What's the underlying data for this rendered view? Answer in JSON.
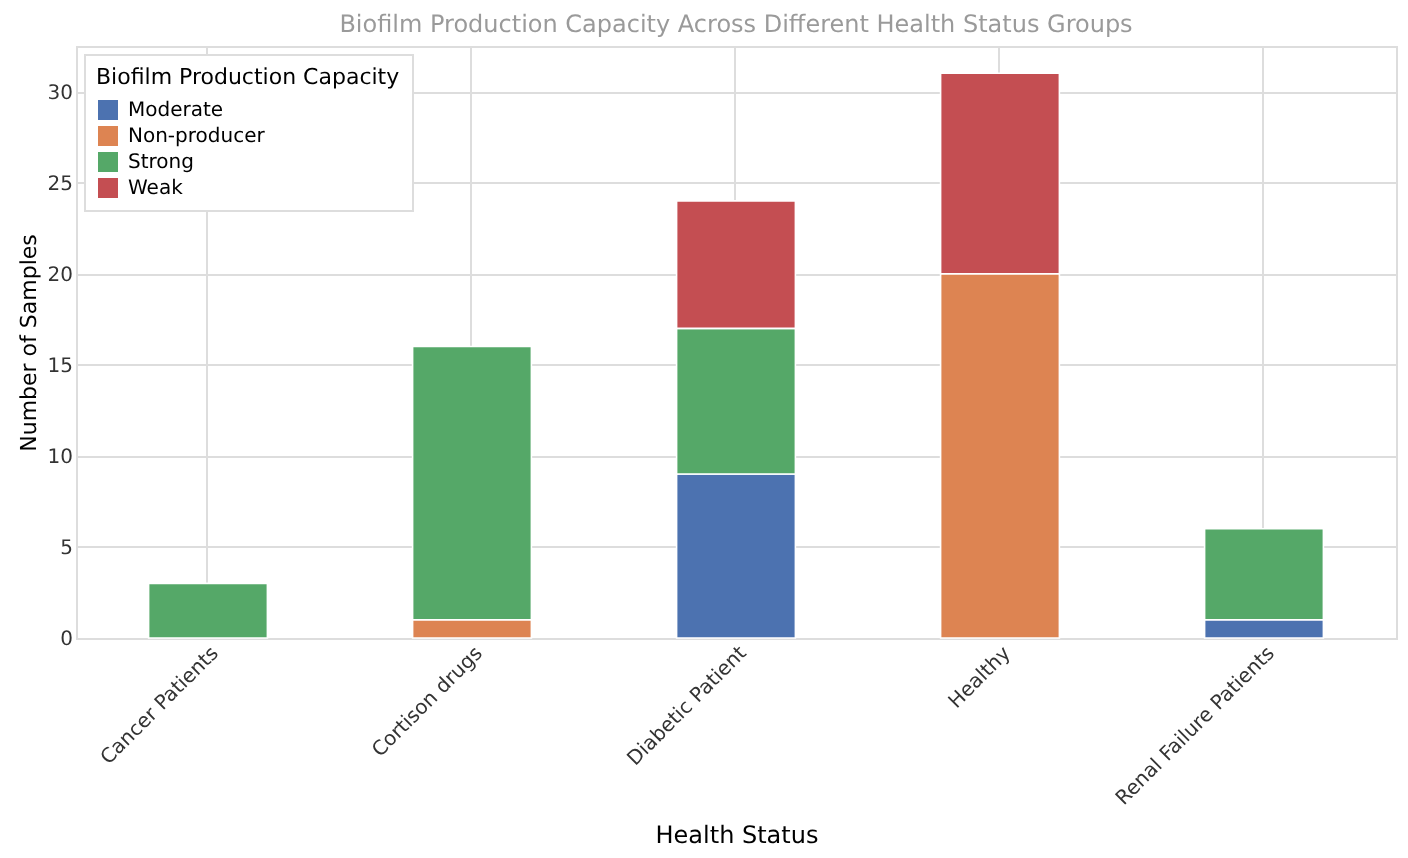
{
  "chart_data": {
    "type": "bar",
    "title": "Biofilm Production Capacity Across Different Health Status Groups",
    "xlabel": "Health Status",
    "ylabel": "Number of Samples",
    "legend_title": "Biofilm Production Capacity",
    "categories": [
      "Cancer Patients",
      "Cortison drugs",
      "Diabetic Patient",
      "Healthy",
      "Renal Failure Patients"
    ],
    "series": [
      {
        "name": "Moderate",
        "color": "#4c72b0",
        "values": [
          0,
          0,
          9,
          0,
          1
        ]
      },
      {
        "name": "Non-producer",
        "color": "#dd8452",
        "values": [
          0,
          1,
          0,
          20,
          0
        ]
      },
      {
        "name": "Strong",
        "color": "#55a868",
        "values": [
          3,
          15,
          8,
          0,
          5
        ]
      },
      {
        "name": "Weak",
        "color": "#c44e52",
        "values": [
          0,
          0,
          7,
          11,
          0
        ]
      }
    ],
    "stacked": true,
    "ylim": [
      0,
      32.5
    ],
    "yticks": [
      0,
      5,
      10,
      15,
      20,
      25,
      30
    ],
    "grid": true,
    "legend": "top left"
  }
}
